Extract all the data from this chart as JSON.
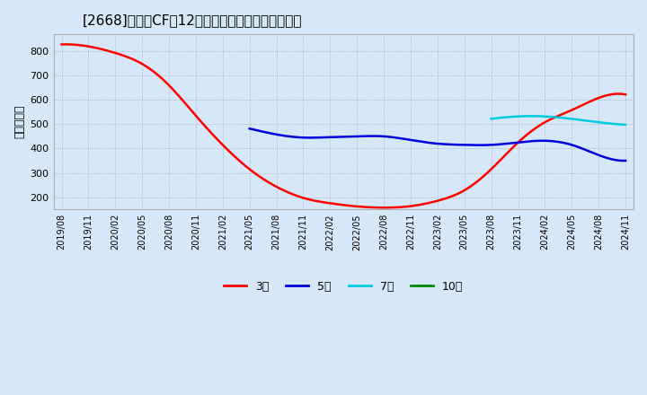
{
  "title": "[2668]　営業CFだ12か月移動合計の平均値の推移",
  "ylabel": "（百万円）",
  "bg_color": "#d6e8f7",
  "ylim": [
    150,
    870
  ],
  "yticks": [
    200,
    300,
    400,
    500,
    600,
    700,
    800
  ],
  "x_labels": [
    "2019/08",
    "2019/11",
    "2020/02",
    "2020/05",
    "2020/08",
    "2020/11",
    "2021/02",
    "2021/05",
    "2021/08",
    "2021/11",
    "2022/02",
    "2022/05",
    "2022/08",
    "2022/11",
    "2023/02",
    "2023/05",
    "2023/08",
    "2023/11",
    "2024/02",
    "2024/05",
    "2024/08",
    "2024/11"
  ],
  "legend_entries": [
    "3年",
    "5年",
    "7年",
    "10年"
  ],
  "legend_colors": [
    "#ff0000",
    "#0000dd",
    "#00ccdd",
    "#008800"
  ],
  "series_3y_x": [
    0,
    1,
    2,
    3,
    4,
    5,
    6,
    7,
    8,
    9,
    10,
    11,
    12,
    13,
    14,
    15,
    16,
    17,
    18,
    19,
    20,
    21
  ],
  "series_3y_y": [
    828,
    820,
    793,
    748,
    660,
    535,
    415,
    315,
    243,
    197,
    175,
    162,
    157,
    163,
    185,
    228,
    315,
    425,
    508,
    558,
    608,
    622
  ],
  "series_5y_x": [
    7,
    8,
    9,
    10,
    11,
    12,
    13,
    14,
    15,
    16,
    17,
    18,
    19,
    20,
    21
  ],
  "series_5y_y": [
    482,
    458,
    445,
    447,
    450,
    450,
    435,
    420,
    415,
    415,
    425,
    432,
    415,
    373,
    350
  ],
  "series_7y_x": [
    16,
    17,
    18,
    19,
    20,
    21
  ],
  "series_7y_y": [
    522,
    532,
    532,
    522,
    508,
    498
  ],
  "series_10y_x": [],
  "series_10y_y": [],
  "line_width": 1.8
}
